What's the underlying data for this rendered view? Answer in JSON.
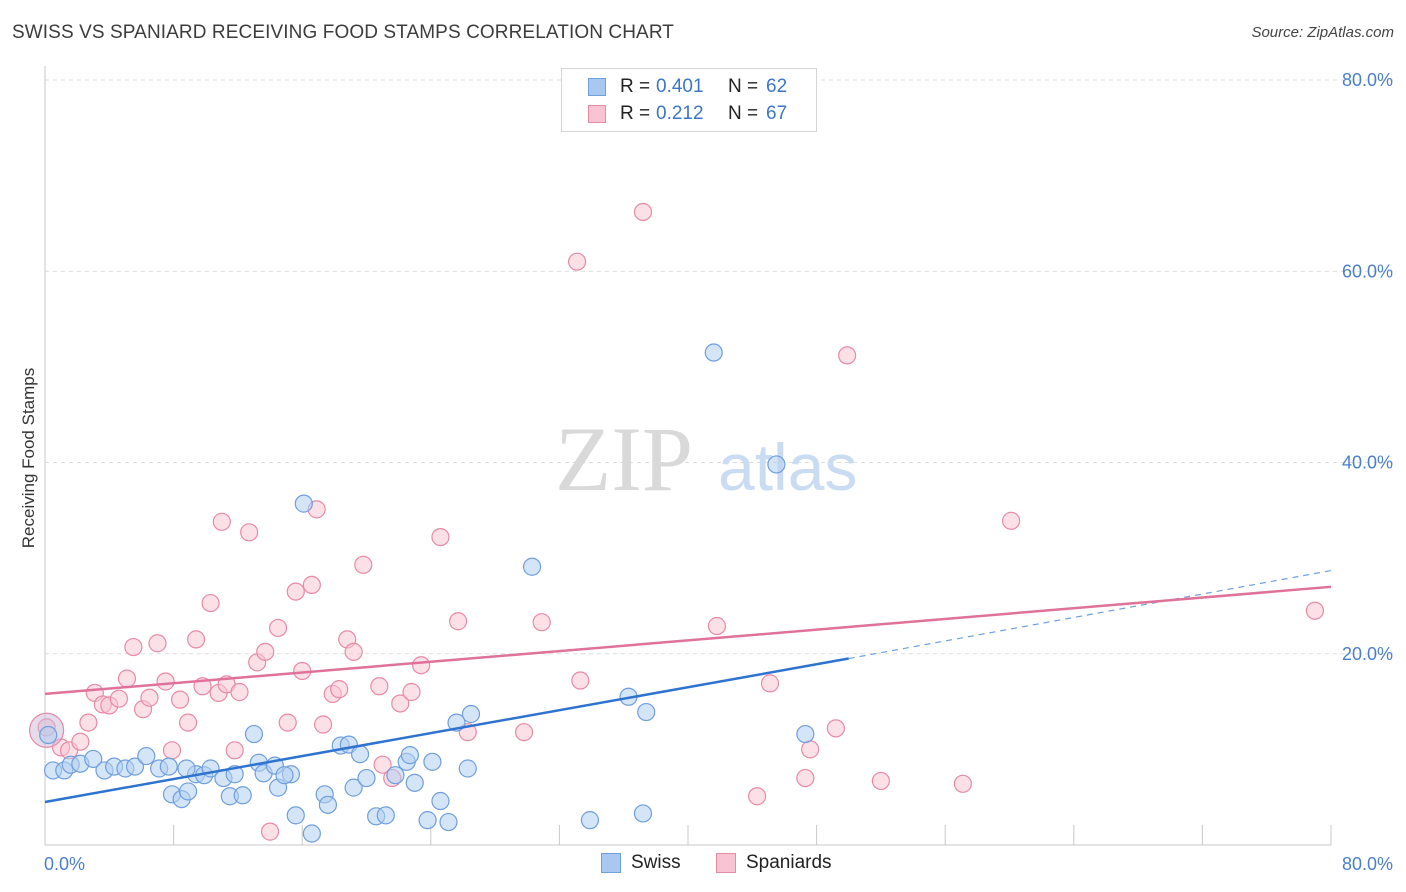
{
  "title": "SWISS VS SPANIARD RECEIVING FOOD STAMPS CORRELATION CHART",
  "source": "Source: ZipAtlas.com",
  "legend": {
    "rows": [
      {
        "r_label": "R =",
        "r_value": "0.401",
        "n_label": "N =",
        "n_value": "62",
        "color": "#a9c8f0",
        "border": "#6f9fdc"
      },
      {
        "r_label": "R =",
        "r_value": "0.212",
        "n_label": "N =",
        "n_value": "67",
        "color": "#f8c3d3",
        "border": "#e88aa6"
      }
    ]
  },
  "bottom_legend": [
    "Swiss",
    "Spaniards"
  ],
  "watermark": {
    "zip": "ZIP",
    "atlas": "atlas"
  },
  "chart_data": {
    "type": "scatter",
    "title": "SWISS VS SPANIARD RECEIVING FOOD STAMPS CORRELATION CHART",
    "xlabel": "",
    "ylabel": "Receiving Food Stamps",
    "xlim": [
      0,
      80
    ],
    "ylim": [
      0,
      80
    ],
    "y_ticks": [
      20,
      40,
      60,
      80
    ],
    "y_tick_labels": [
      "20.0%",
      "40.0%",
      "60.0%",
      "80.0%"
    ],
    "x_tick_labels": [
      "0.0%",
      "80.0%"
    ],
    "grid": true,
    "series": [
      {
        "name": "Swiss",
        "color": "#6f9fdc",
        "fill": "#b3cff2",
        "trend": {
          "x": [
            0,
            50
          ],
          "y": [
            4.5,
            19.5
          ],
          "dashed_to": [
            80,
            28.7
          ]
        },
        "points": [
          [
            0.5,
            7.8
          ],
          [
            1.2,
            7.8
          ],
          [
            1.6,
            8.4
          ],
          [
            2.2,
            8.5
          ],
          [
            3.0,
            9.0
          ],
          [
            3.7,
            7.8
          ],
          [
            4.3,
            8.2
          ],
          [
            5.0,
            8.0
          ],
          [
            5.6,
            8.2
          ],
          [
            6.3,
            9.3
          ],
          [
            7.1,
            8.0
          ],
          [
            7.7,
            8.2
          ],
          [
            7.9,
            5.3
          ],
          [
            8.5,
            4.8
          ],
          [
            8.9,
            5.6
          ],
          [
            9.4,
            7.4
          ],
          [
            9.9,
            7.3
          ],
          [
            10.3,
            8.0
          ],
          [
            11.1,
            7.0
          ],
          [
            11.5,
            5.1
          ],
          [
            11.8,
            7.4
          ],
          [
            12.3,
            5.2
          ],
          [
            13.0,
            11.6
          ],
          [
            13.3,
            8.6
          ],
          [
            13.6,
            7.5
          ],
          [
            14.3,
            8.3
          ],
          [
            14.5,
            6.0
          ],
          [
            15.3,
            7.4
          ],
          [
            15.6,
            3.1
          ],
          [
            16.1,
            35.7
          ],
          [
            16.6,
            1.2
          ],
          [
            17.4,
            5.3
          ],
          [
            17.6,
            4.2
          ],
          [
            18.4,
            10.4
          ],
          [
            18.9,
            10.5
          ],
          [
            19.2,
            6.0
          ],
          [
            19.6,
            9.5
          ],
          [
            20.0,
            7.0
          ],
          [
            20.6,
            3.0
          ],
          [
            21.2,
            3.1
          ],
          [
            21.8,
            7.3
          ],
          [
            22.5,
            8.7
          ],
          [
            22.7,
            9.4
          ],
          [
            23.0,
            6.5
          ],
          [
            23.8,
            2.6
          ],
          [
            24.1,
            8.7
          ],
          [
            24.6,
            4.6
          ],
          [
            25.1,
            2.4
          ],
          [
            25.6,
            12.8
          ],
          [
            26.3,
            8.0
          ],
          [
            26.5,
            13.7
          ],
          [
            30.3,
            29.1
          ],
          [
            33.9,
            2.6
          ],
          [
            36.3,
            15.5
          ],
          [
            37.2,
            3.3
          ],
          [
            37.4,
            13.9
          ],
          [
            41.6,
            51.5
          ],
          [
            45.5,
            39.8
          ],
          [
            47.3,
            11.6
          ],
          [
            0.2,
            11.5
          ],
          [
            8.8,
            8.0
          ],
          [
            14.9,
            7.3
          ]
        ]
      },
      {
        "name": "Spaniards",
        "color": "#e88aa6",
        "fill": "#f8c7d6",
        "trend": {
          "x": [
            0,
            80
          ],
          "y": [
            15.8,
            27.0
          ]
        },
        "points": [
          [
            0.1,
            12.3
          ],
          [
            1.0,
            10.2
          ],
          [
            1.5,
            9.9
          ],
          [
            2.2,
            10.8
          ],
          [
            2.7,
            12.8
          ],
          [
            3.1,
            15.9
          ],
          [
            3.6,
            14.7
          ],
          [
            4.0,
            14.6
          ],
          [
            4.6,
            15.3
          ],
          [
            5.1,
            17.4
          ],
          [
            5.5,
            20.7
          ],
          [
            6.1,
            14.2
          ],
          [
            6.5,
            15.4
          ],
          [
            7.0,
            21.1
          ],
          [
            7.5,
            17.1
          ],
          [
            7.9,
            9.9
          ],
          [
            8.4,
            15.2
          ],
          [
            8.9,
            12.8
          ],
          [
            9.4,
            21.5
          ],
          [
            9.8,
            16.6
          ],
          [
            10.3,
            25.3
          ],
          [
            10.8,
            15.9
          ],
          [
            11.3,
            16.8
          ],
          [
            11.8,
            9.9
          ],
          [
            12.1,
            16.0
          ],
          [
            12.7,
            32.7
          ],
          [
            13.2,
            19.1
          ],
          [
            13.7,
            20.2
          ],
          [
            14.5,
            22.7
          ],
          [
            15.1,
            12.8
          ],
          [
            15.6,
            26.5
          ],
          [
            16.0,
            18.2
          ],
          [
            16.6,
            27.2
          ],
          [
            16.9,
            35.1
          ],
          [
            17.3,
            12.6
          ],
          [
            17.9,
            15.8
          ],
          [
            18.3,
            16.3
          ],
          [
            18.8,
            21.5
          ],
          [
            19.2,
            20.2
          ],
          [
            19.8,
            29.3
          ],
          [
            20.8,
            16.6
          ],
          [
            21.0,
            8.4
          ],
          [
            21.6,
            7.0
          ],
          [
            22.1,
            14.8
          ],
          [
            22.8,
            16.0
          ],
          [
            23.4,
            18.8
          ],
          [
            24.6,
            32.2
          ],
          [
            25.7,
            23.4
          ],
          [
            26.3,
            11.8
          ],
          [
            29.8,
            11.8
          ],
          [
            30.9,
            23.3
          ],
          [
            33.1,
            61.0
          ],
          [
            33.3,
            17.2
          ],
          [
            37.2,
            66.2
          ],
          [
            41.8,
            22.9
          ],
          [
            44.3,
            5.1
          ],
          [
            45.1,
            16.9
          ],
          [
            47.3,
            7.0
          ],
          [
            47.6,
            10.0
          ],
          [
            49.2,
            12.2
          ],
          [
            49.9,
            51.2
          ],
          [
            52.0,
            6.7
          ],
          [
            57.1,
            6.4
          ],
          [
            60.1,
            33.9
          ],
          [
            79.0,
            24.5
          ],
          [
            11.0,
            33.8
          ],
          [
            14.0,
            1.4
          ]
        ]
      }
    ]
  }
}
